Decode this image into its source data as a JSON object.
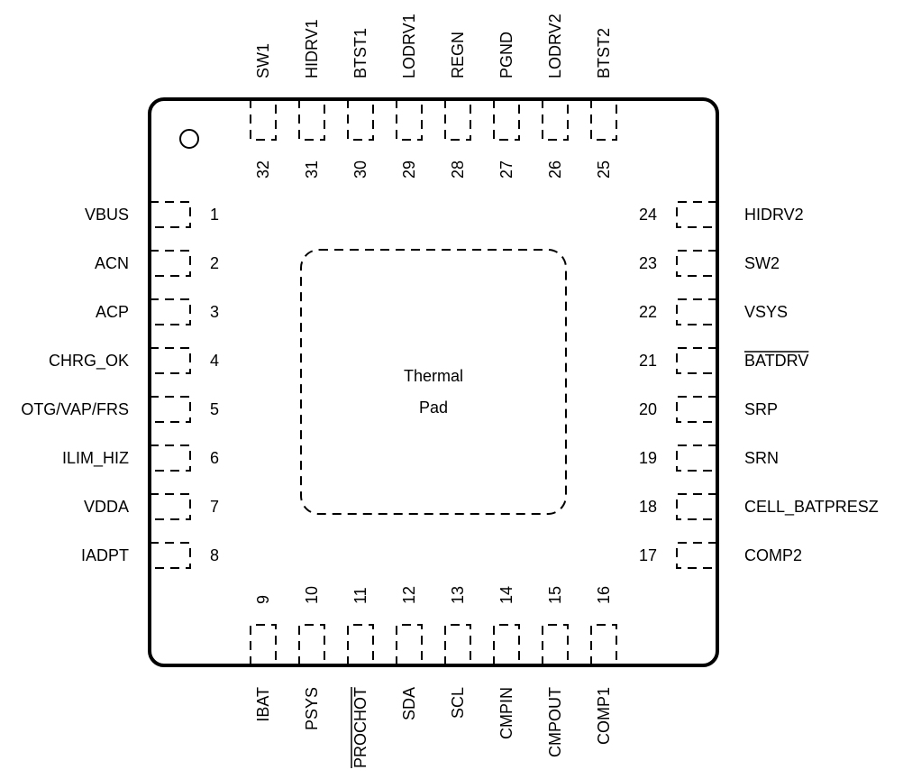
{
  "thermal_pad": {
    "line1": "Thermal",
    "line2": "Pad"
  },
  "pins_left": [
    {
      "num": "1",
      "name": "VBUS",
      "overbar": false
    },
    {
      "num": "2",
      "name": "ACN",
      "overbar": false
    },
    {
      "num": "3",
      "name": "ACP",
      "overbar": false
    },
    {
      "num": "4",
      "name": "CHRG_OK",
      "overbar": false
    },
    {
      "num": "5",
      "name": "OTG/VAP/FRS",
      "overbar": false
    },
    {
      "num": "6",
      "name": "ILIM_HIZ",
      "overbar": false
    },
    {
      "num": "7",
      "name": "VDDA",
      "overbar": false
    },
    {
      "num": "8",
      "name": "IADPT",
      "overbar": false
    }
  ],
  "pins_bottom": [
    {
      "num": "9",
      "name": "IBAT",
      "overbar": false
    },
    {
      "num": "10",
      "name": "PSYS",
      "overbar": false
    },
    {
      "num": "11",
      "name": "PROCHOT",
      "overbar": true
    },
    {
      "num": "12",
      "name": "SDA",
      "overbar": false
    },
    {
      "num": "13",
      "name": "SCL",
      "overbar": false
    },
    {
      "num": "14",
      "name": "CMPIN",
      "overbar": false
    },
    {
      "num": "15",
      "name": "CMPOUT",
      "overbar": false
    },
    {
      "num": "16",
      "name": "COMP1",
      "overbar": false
    }
  ],
  "pins_right": [
    {
      "num": "24",
      "name": "HIDRV2",
      "overbar": false
    },
    {
      "num": "23",
      "name": "SW2",
      "overbar": false
    },
    {
      "num": "22",
      "name": "VSYS",
      "overbar": false
    },
    {
      "num": "21",
      "name": "BATDRV",
      "overbar": true
    },
    {
      "num": "20",
      "name": "SRP",
      "overbar": false
    },
    {
      "num": "19",
      "name": "SRN",
      "overbar": false
    },
    {
      "num": "18",
      "name": "CELL_BATPRESZ",
      "overbar": false
    },
    {
      "num": "17",
      "name": "COMP2",
      "overbar": false
    }
  ],
  "pins_top": [
    {
      "num": "32",
      "name": "SW1",
      "overbar": false
    },
    {
      "num": "31",
      "name": "HIDRV1",
      "overbar": false
    },
    {
      "num": "30",
      "name": "BTST1",
      "overbar": false
    },
    {
      "num": "29",
      "name": "LODRV1",
      "overbar": false
    },
    {
      "num": "28",
      "name": "REGN",
      "overbar": false
    },
    {
      "num": "27",
      "name": "PGND",
      "overbar": false
    },
    {
      "num": "26",
      "name": "LODRV2",
      "overbar": false
    },
    {
      "num": "25",
      "name": "BTST2",
      "overbar": false
    }
  ]
}
